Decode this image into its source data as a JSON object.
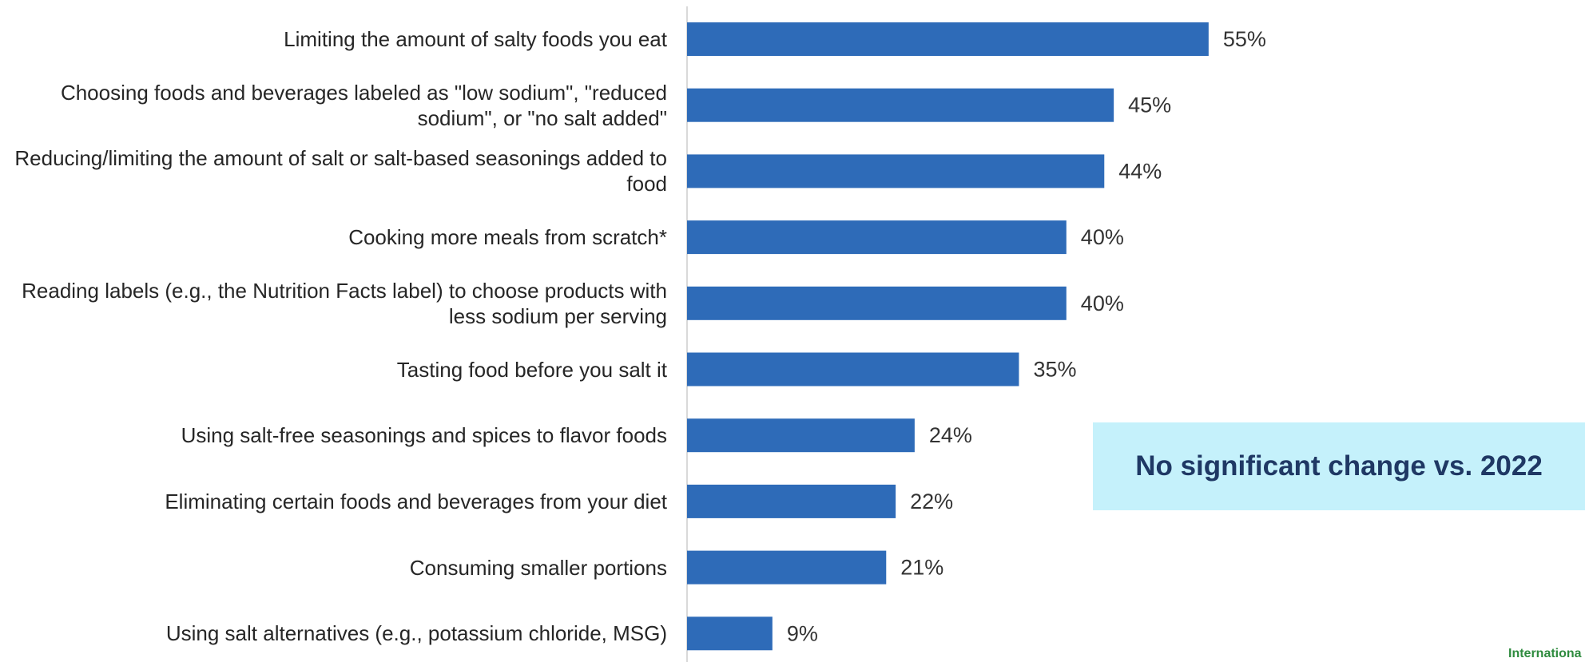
{
  "chart_data": {
    "type": "bar",
    "orientation": "horizontal",
    "categories": [
      "Limiting the amount of salty foods you eat",
      "Choosing foods and beverages labeled as \"low sodium\", \"reduced sodium\", or \"no salt added\"",
      "Reducing/limiting the amount of salt or salt-based seasonings added to food",
      "Cooking more meals from scratch*",
      "Reading labels (e.g., the Nutrition Facts label) to choose products with less sodium per serving",
      "Tasting food before you salt it",
      "Using salt-free seasonings and spices to flavor foods",
      "Eliminating certain foods and beverages from your diet",
      "Consuming smaller portions",
      "Using salt alternatives (e.g., potassium chloride, MSG)"
    ],
    "values": [
      55,
      45,
      44,
      40,
      40,
      35,
      24,
      22,
      21,
      9
    ],
    "value_labels": [
      "55%",
      "45%",
      "44%",
      "40%",
      "40%",
      "35%",
      "24%",
      "22%",
      "21%",
      "9%"
    ],
    "color": "#2e6bb8",
    "annotation": "No significant change vs. 2022"
  },
  "footer": "Internationa"
}
